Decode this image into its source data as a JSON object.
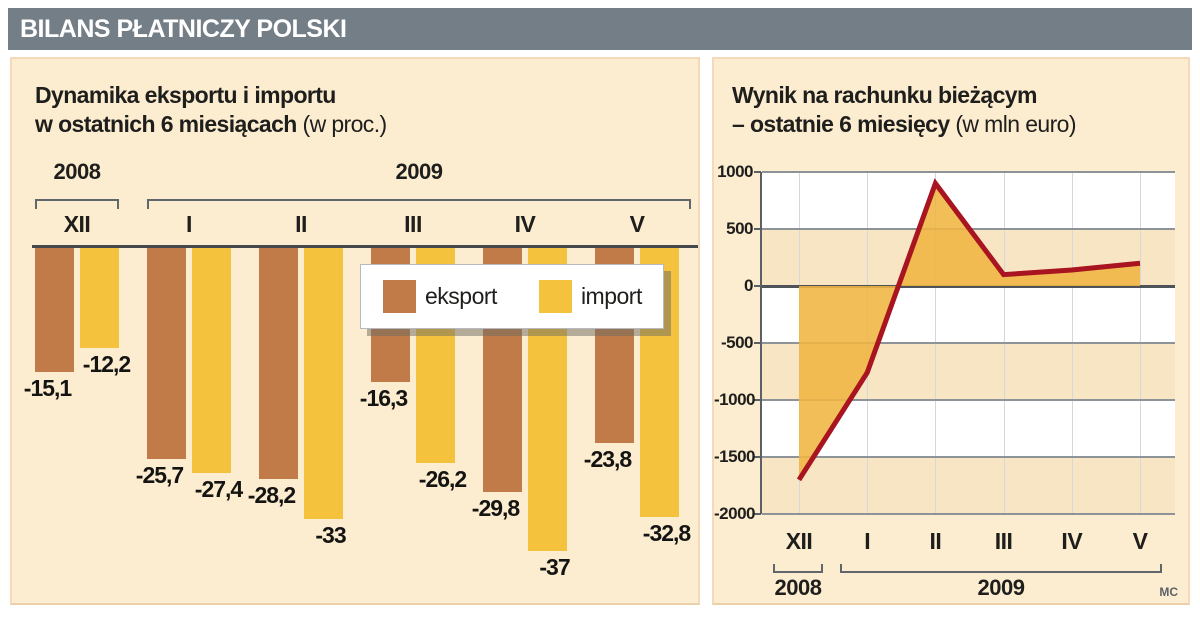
{
  "header": {
    "title": "BILANS PŁATNICZY POLSKI"
  },
  "credit": "MC",
  "colors": {
    "header_bg": "#737e87",
    "panel_bg": "#fcecd0",
    "band_cream": "#f8e5c3",
    "eksport": "#c07b49",
    "import": "#f4c23c",
    "area_fill": "#f0b541",
    "line_red": "#a81420",
    "axis_dark": "#45494e"
  },
  "chart_data": [
    {
      "type": "bar",
      "title": "Dynamika eksportu i importu w ostatnich 6 miesiącach (w proc.)",
      "title_lines": [
        "Dynamika eksportu i importu",
        "w ostatnich 6 miesiącach"
      ],
      "title_suffix": " (w proc.)",
      "categories": [
        "XII",
        "I",
        "II",
        "III",
        "IV",
        "V"
      ],
      "year_groups": [
        {
          "label": "2008",
          "span": [
            0,
            0
          ]
        },
        {
          "label": "2009",
          "span": [
            1,
            5
          ]
        }
      ],
      "series": [
        {
          "name": "eksport",
          "color": "#c07b49",
          "values": [
            -15.1,
            -25.7,
            -28.2,
            -16.3,
            -29.8,
            -23.8
          ]
        },
        {
          "name": "import",
          "color": "#f4c23c",
          "values": [
            -12.2,
            -27.4,
            -33,
            -26.2,
            -37,
            -32.8
          ]
        }
      ],
      "ylim": [
        -40,
        0
      ],
      "xlabel": "",
      "ylabel": "",
      "grid": false,
      "legend_position": "overlay-top-center"
    },
    {
      "type": "area",
      "title": "Wynik na rachunku bieżącym – ostatnie 6 miesięcy (w mln euro)",
      "title_lines": [
        "Wynik na rachunku bieżącym",
        "– ostatnie 6 miesięcy"
      ],
      "title_suffix": " (w mln euro)",
      "x": [
        "XII",
        "I",
        "II",
        "III",
        "IV",
        "V"
      ],
      "values": [
        -1700,
        -760,
        900,
        100,
        140,
        200
      ],
      "year_groups": [
        {
          "label": "2008",
          "span": [
            0,
            0
          ]
        },
        {
          "label": "2009",
          "span": [
            1,
            5
          ]
        }
      ],
      "yticks": [
        1000,
        500,
        0,
        -500,
        -1000,
        -1500,
        -2000
      ],
      "ylim": [
        -2000,
        1000
      ],
      "xlabel": "",
      "ylabel": "",
      "grid": true,
      "legend_position": "none"
    }
  ]
}
